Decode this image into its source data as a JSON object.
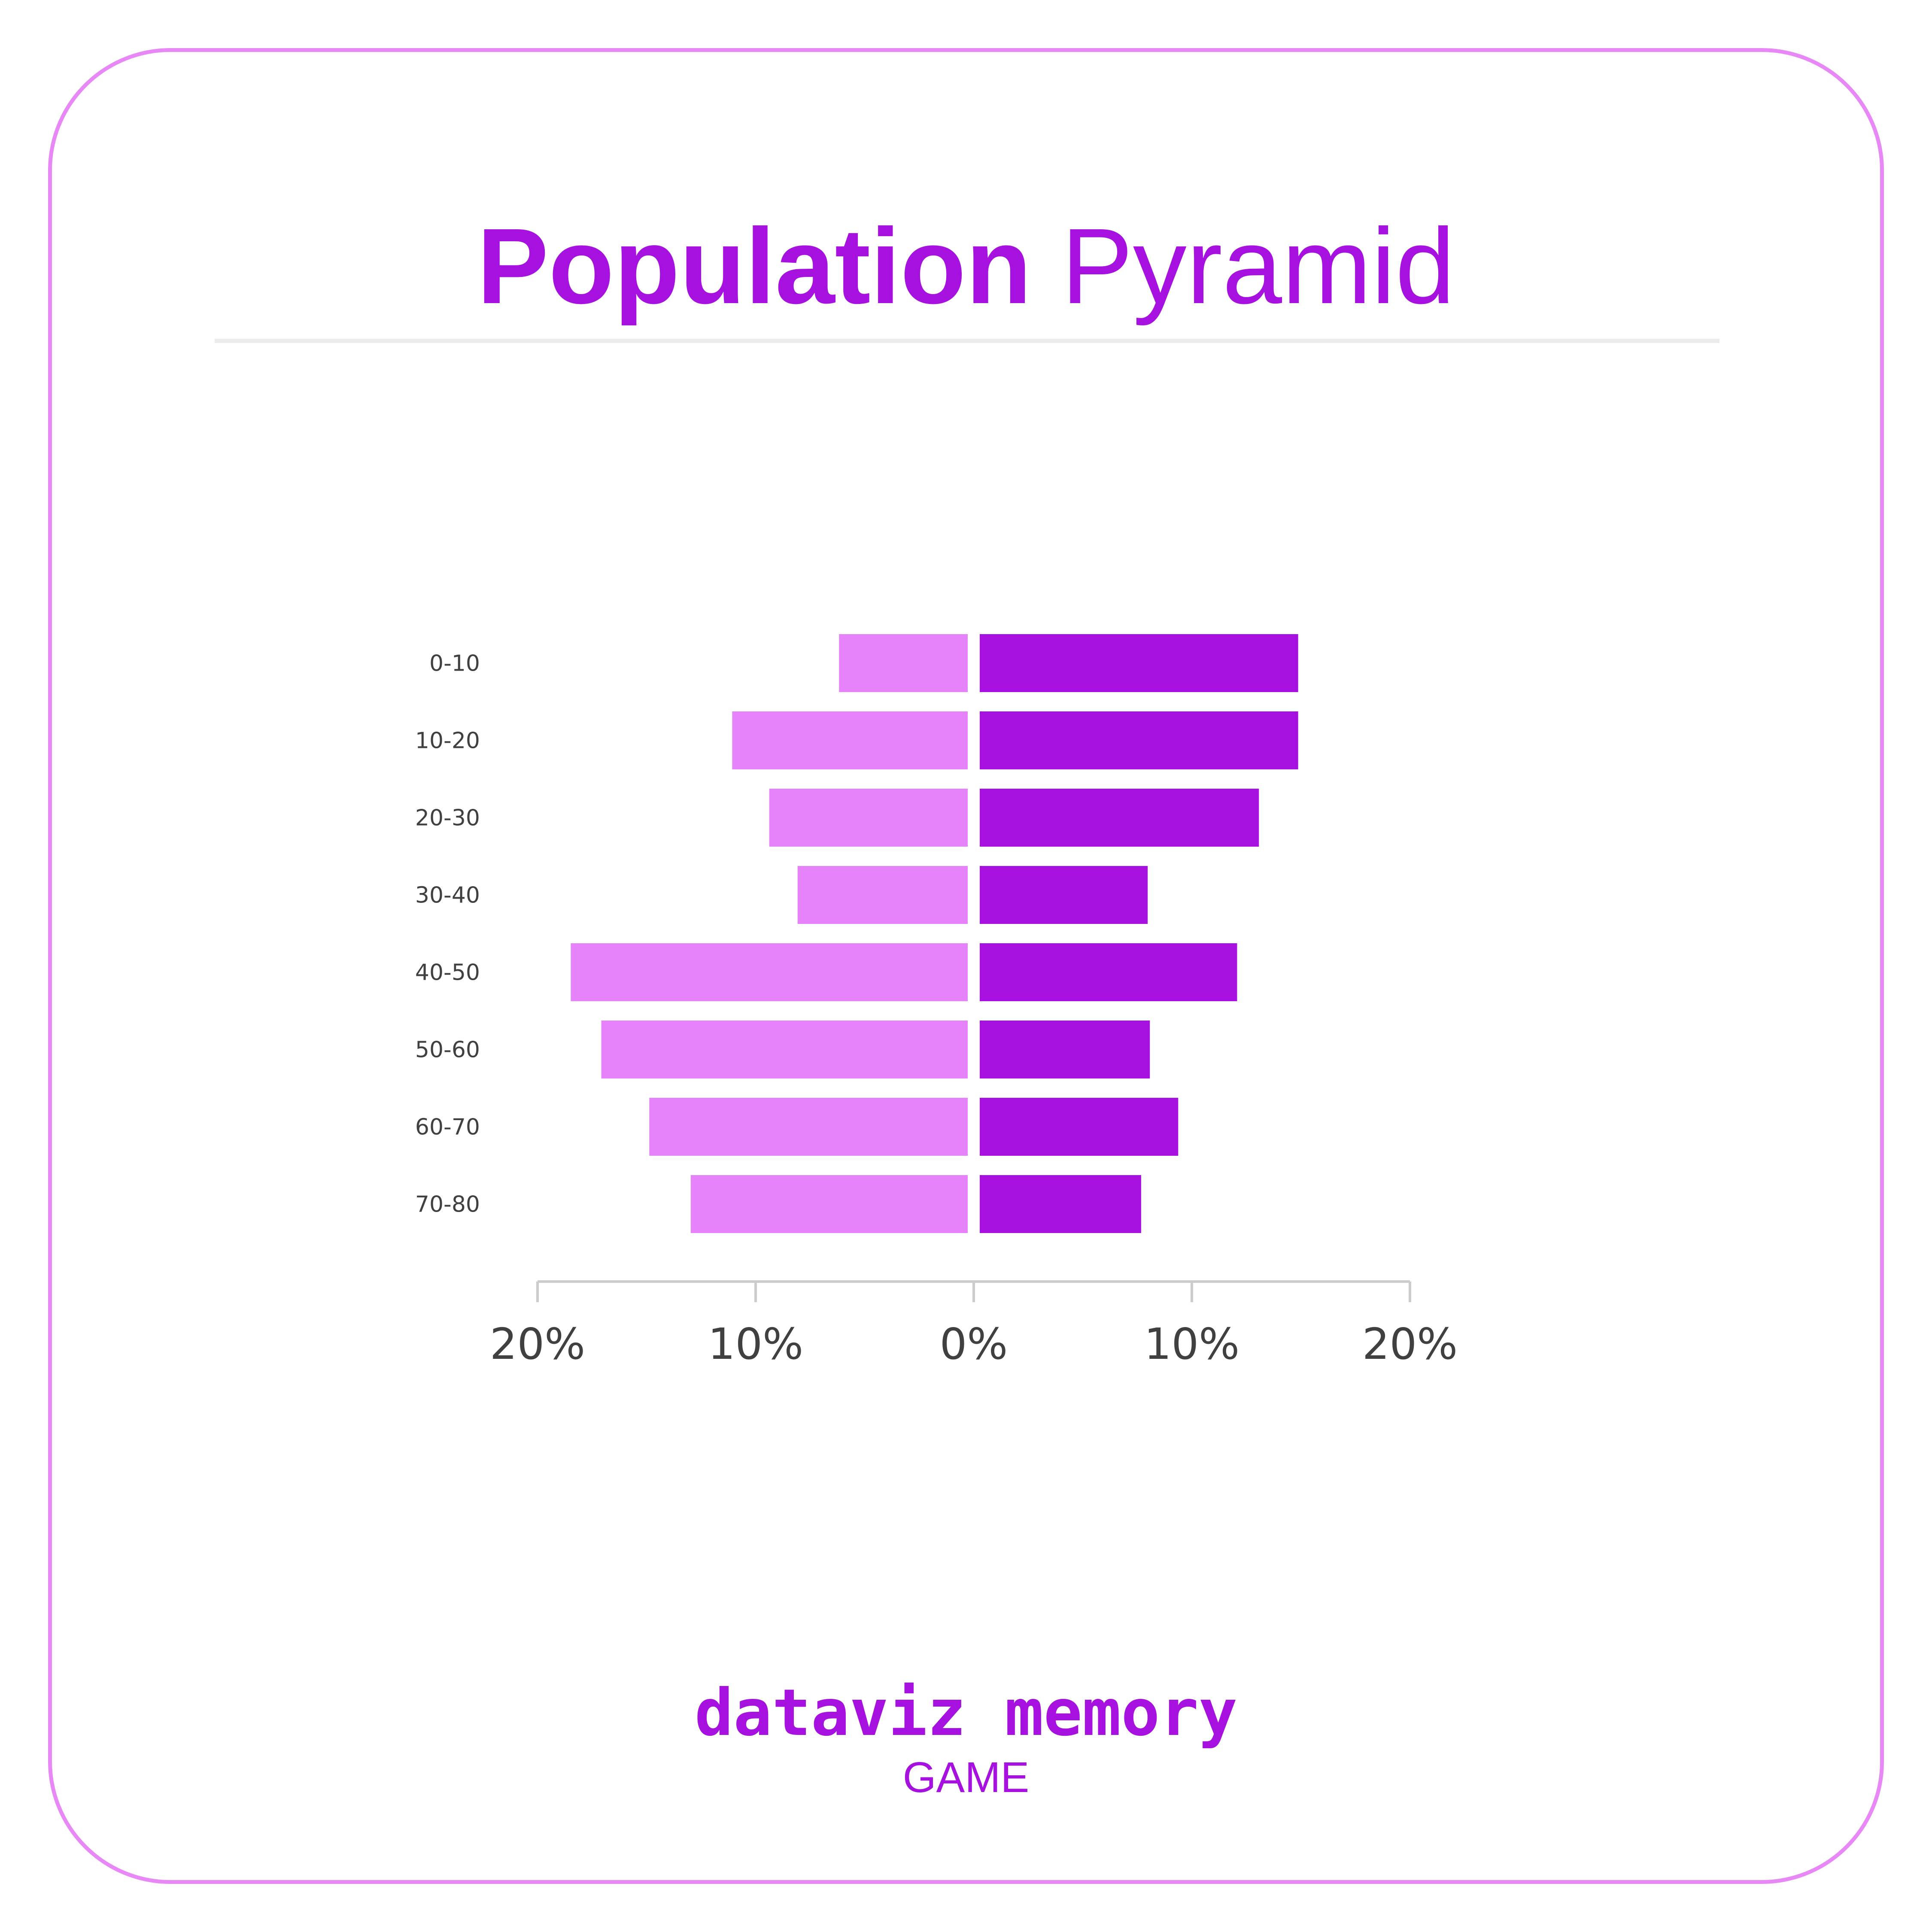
{
  "title": {
    "bold": "Population",
    "light": "Pyramid"
  },
  "footer": {
    "brand": "dataviz memory",
    "subtitle": "GAME"
  },
  "colors": {
    "left": "#e683fb",
    "right": "#a711e0",
    "border": "#e888f7",
    "axis": "#cccccc",
    "label": "#404040"
  },
  "chart_data": {
    "type": "bar",
    "orientation": "horizontal-diverging",
    "categories": [
      "0-10",
      "10-20",
      "20-30",
      "30-40",
      "40-50",
      "50-60",
      "60-70",
      "70-80"
    ],
    "series": [
      {
        "side": "left",
        "values": [
          5.9,
          10.8,
          9.1,
          7.8,
          18.2,
          16.8,
          14.6,
          12.7
        ]
      },
      {
        "side": "right",
        "values": [
          14.6,
          14.6,
          12.8,
          7.7,
          11.8,
          7.8,
          9.1,
          7.4
        ]
      }
    ],
    "xticks": [
      "20%",
      "10%",
      "0%",
      "10%",
      "20%"
    ],
    "xlim": [
      -20,
      20
    ],
    "title": "Population Pyramid",
    "xlabel": "",
    "ylabel": ""
  }
}
